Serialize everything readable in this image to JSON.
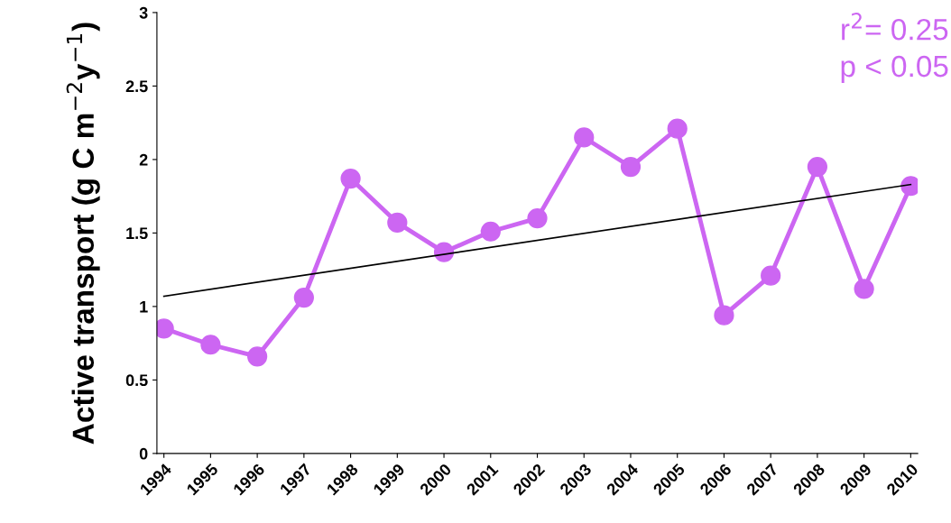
{
  "chart_data": {
    "type": "line",
    "ylabel": "Active transport (g C m$^{−2}$y$^{−1}$)",
    "x": [
      1994,
      1995,
      1996,
      1997,
      1998,
      1999,
      2000,
      2001,
      2002,
      2003,
      2004,
      2005,
      2006,
      2007,
      2008,
      2009,
      2010
    ],
    "series": [
      {
        "color": "#cc66f2",
        "marker": "circle",
        "values": [
          0.85,
          0.74,
          0.66,
          1.06,
          1.87,
          1.57,
          1.37,
          1.51,
          1.6,
          2.15,
          1.95,
          2.21,
          0.94,
          1.21,
          1.95,
          1.12,
          1.82
        ]
      },
      {
        "type": "line",
        "color": "#000000",
        "marker": "none",
        "x": [
          1994,
          2010
        ],
        "values": [
          1.07,
          1.83
        ]
      }
    ],
    "xlim": [
      1993.85,
      2010.15
    ],
    "xticks": [
      1994,
      1995,
      1996,
      1997,
      1998,
      1999,
      2000,
      2001,
      2002,
      2003,
      2004,
      2005,
      2006,
      2007,
      2008,
      2009,
      2010
    ],
    "ylim": [
      0,
      3
    ],
    "yticks": [
      0,
      0.5,
      1,
      1.5,
      2,
      2.5,
      3
    ],
    "grid": false,
    "legend": false,
    "annotations": [
      "r$^{2}$= 0.25",
      "p < 0.05"
    ]
  }
}
